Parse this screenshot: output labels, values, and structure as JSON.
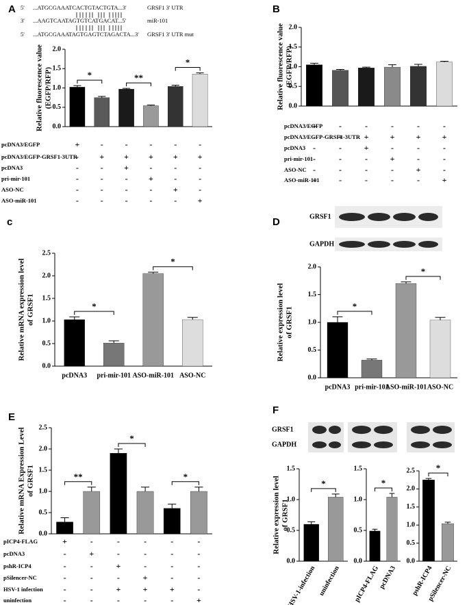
{
  "chart_data": [
    {
      "type": "bar",
      "panel": "A",
      "sequences": [
        [
          "5'",
          "...ATGCGAAATCACTGTACTGTA...3'",
          "GRSF1 3' UTR"
        ],
        [
          "3'",
          "...AAGTCAATAGTGTCATGACAT...5'",
          "miR-101"
        ],
        [
          "5'",
          "...ATGCGAAATAGTGAGTCTAGACTA...3'",
          "GRSF1 3' UTR mut"
        ]
      ],
      "ylabel": [
        "Relative fluorescence value",
        "(EGFP/RFP)"
      ],
      "ylim": [
        0,
        2
      ],
      "yticks": [
        {
          "value": 0,
          "label": "0.0"
        },
        0.5,
        {
          "value": 1,
          "label": "1.0"
        },
        1.5,
        {
          "value": 2,
          "label": "2.0"
        }
      ],
      "values": [
        1.02,
        0.75,
        0.97,
        0.54,
        1.04,
        1.36
      ],
      "errors": [
        0.04,
        0.03,
        0.02,
        0.02,
        0.03,
        0.03
      ],
      "colors": [
        "#000000",
        "#5a5a5a",
        "#1a1a1a",
        "#9a9a9a",
        "#333333",
        "#dcdcdc"
      ],
      "significance": [
        "*",
        "**",
        "*"
      ],
      "conditions": [
        {
          "label": "pcDNA3/EGFP",
          "marks": [
            "+",
            "-",
            "-",
            "-",
            "-",
            "-"
          ]
        },
        {
          "label": "pcDNA3/EGFP-GRSF1-3UTR",
          "marks": [
            "-",
            "+",
            "+",
            "+",
            "+",
            "+"
          ]
        },
        {
          "label": "pcDNA3",
          "marks": [
            "-",
            "-",
            "+",
            "-",
            "-",
            "-"
          ]
        },
        {
          "label": "pri-mir-101",
          "marks": [
            "-",
            "-",
            "-",
            "+",
            "-",
            "-"
          ]
        },
        {
          "label": "ASO-NC",
          "marks": [
            "-",
            "-",
            "-",
            "-",
            "+",
            "-"
          ]
        },
        {
          "label": "ASO-miR-101",
          "marks": [
            "-",
            "-",
            "-",
            "-",
            "-",
            "+"
          ]
        }
      ]
    },
    {
      "type": "bar",
      "panel": "B",
      "ylabel": [
        "Relative fluorescence value",
        "(EGFP/RFP)"
      ],
      "ylim": [
        0,
        2
      ],
      "yticks": [
        {
          "value": 0,
          "label": "0.0"
        },
        0.5,
        {
          "value": 1,
          "label": "1.0"
        },
        1.5,
        {
          "value": 2,
          "label": "2.0"
        }
      ],
      "values": [
        1.05,
        0.91,
        0.97,
        0.99,
        1.01,
        1.12
      ],
      "errors": [
        0.04,
        0.02,
        0.02,
        0.06,
        0.05,
        0.02
      ],
      "colors": [
        "#000000",
        "#555555",
        "#1a1a1a",
        "#8a8a8a",
        "#333333",
        "#dcdcdc"
      ],
      "conditions": [
        {
          "label": "pcDNA3/EGFP",
          "marks": [
            "+",
            "-",
            "-",
            "-",
            "-",
            "-"
          ]
        },
        {
          "label": "pcDNA3/EGFP-GRSF1-3UTR",
          "marks": [
            "-",
            "+",
            "+",
            "+",
            "+",
            "+"
          ]
        },
        {
          "label": "pcDNA3",
          "marks": [
            "-",
            "-",
            "+",
            "-",
            "-",
            "-"
          ]
        },
        {
          "label": "pri-mir-101",
          "marks": [
            "-",
            "-",
            "-",
            "+",
            "-",
            "-"
          ]
        },
        {
          "label": "ASO-NC",
          "marks": [
            "-",
            "-",
            "-",
            "-",
            "+",
            "-"
          ]
        },
        {
          "label": "ASO-miR-101",
          "marks": [
            "-",
            "-",
            "-",
            "-",
            "-",
            "+"
          ]
        }
      ]
    },
    {
      "type": "bar",
      "panel": "c",
      "ylabel": [
        "Relative mRNA expression level",
        "of GRSF1"
      ],
      "ylim": [
        0,
        2.5
      ],
      "yticks": [
        {
          "value": 0,
          "label": "0.0"
        },
        0.5,
        {
          "value": 1,
          "label": "1.0"
        },
        1.5,
        {
          "value": 2,
          "label": "2.0"
        },
        2.5
      ],
      "categories": [
        "pcDNA3",
        "pri-mir-101",
        "ASO-miR-101",
        "ASO-NC"
      ],
      "values": [
        1.03,
        0.51,
        2.05,
        1.03
      ],
      "errors": [
        0.06,
        0.05,
        0.03,
        0.05
      ],
      "colors": [
        "#000000",
        "#777777",
        "#999999",
        "#dddddd"
      ],
      "significance": [
        "*",
        "*"
      ]
    },
    {
      "type": "bar",
      "panel": "D",
      "blot": [
        "GRSF1",
        "GAPDH"
      ],
      "ylabel": [
        "Relative expression level",
        "of GRSF1"
      ],
      "ylim": [
        0,
        2
      ],
      "yticks": [
        {
          "value": 0,
          "label": "0.0"
        },
        0.5,
        {
          "value": 1,
          "label": "1.0"
        },
        1.5,
        {
          "value": 2,
          "label": "2.0"
        }
      ],
      "categories": [
        "pcDNA3",
        "pri-mir-101",
        "ASO-miR-101",
        "ASO-NC"
      ],
      "values": [
        1.0,
        0.32,
        1.7,
        1.04
      ],
      "errors": [
        0.1,
        0.02,
        0.03,
        0.05
      ],
      "colors": [
        "#000000",
        "#777777",
        "#999999",
        "#dddddd"
      ],
      "significance": [
        "*",
        "*"
      ]
    },
    {
      "type": "bar",
      "panel": "E",
      "ylabel": [
        "Relative  mRNA Expression Level",
        "of GRSF1"
      ],
      "ylim": [
        0,
        2.5
      ],
      "yticks": [
        {
          "value": 0,
          "label": "0.0"
        },
        0.5,
        {
          "value": 1,
          "label": "1.0"
        },
        1.5,
        {
          "value": 2,
          "label": "2.0"
        },
        2.5
      ],
      "values": [
        0.28,
        1.0,
        1.9,
        1.0,
        0.6,
        1.0
      ],
      "errors": [
        0.1,
        0.1,
        0.1,
        0.1,
        0.1,
        0.1
      ],
      "colors": [
        "#000000",
        "#999999",
        "#000000",
        "#999999",
        "#000000",
        "#999999"
      ],
      "significance": [
        "**",
        "*",
        "*"
      ],
      "conditions": [
        {
          "label": "pICP4-FLAG",
          "marks": [
            "+",
            "-",
            "-",
            "-",
            "-",
            "-"
          ]
        },
        {
          "label": "pcDNA3",
          "marks": [
            "-",
            "+",
            "-",
            "-",
            "-",
            "-"
          ]
        },
        {
          "label": "pshR-ICP4",
          "marks": [
            "-",
            "-",
            "+",
            "-",
            "-",
            "-"
          ]
        },
        {
          "label": "pSilencer-NC",
          "marks": [
            "-",
            "-",
            "-",
            "+",
            "-",
            "-"
          ]
        },
        {
          "label": "HSV-1 infection",
          "marks": [
            "-",
            "-",
            "+",
            "+",
            "+",
            "-"
          ]
        },
        {
          "label": "uninfection",
          "marks": [
            "-",
            "-",
            "-",
            "-",
            "-",
            "+"
          ]
        }
      ]
    },
    {
      "type": "bar",
      "panel": "F",
      "blot": [
        "GRSF1",
        "GAPDH"
      ],
      "ylabel": [
        "Relative expression level",
        "of GRSF1"
      ],
      "ylim": [
        0,
        1.5
      ],
      "yticks": [
        {
          "value": 0,
          "label": "0.0"
        },
        0.5,
        {
          "value": 1,
          "label": "1.0"
        },
        1.5
      ],
      "categories": [
        "HSV-1-infection",
        "uninfection"
      ],
      "values": [
        0.6,
        1.04
      ],
      "errors": [
        0.04,
        0.05
      ],
      "colors": [
        "#000000",
        "#999999"
      ],
      "significance": [
        "*"
      ]
    },
    {
      "type": "bar",
      "ylim": [
        0,
        1.5
      ],
      "yticks": [
        {
          "value": 0,
          "label": "0.0"
        },
        0.5,
        {
          "value": 1,
          "label": "1.0"
        },
        1.5
      ],
      "categories": [
        "pICP4-FLAG",
        "pcDNA3"
      ],
      "values": [
        0.49,
        1.04
      ],
      "errors": [
        0.03,
        0.06
      ],
      "colors": [
        "#000000",
        "#999999"
      ],
      "significance": [
        "*"
      ]
    },
    {
      "type": "bar",
      "ylim": [
        0,
        2.5
      ],
      "yticks": [
        {
          "value": 0,
          "label": "0.0"
        },
        0.5,
        {
          "value": 1,
          "label": "1.0"
        },
        1.5,
        {
          "value": 2,
          "label": "2.0"
        },
        2.5
      ],
      "categories": [
        "pshR-ICP4",
        "pSilencer-NC"
      ],
      "values": [
        2.25,
        1.04
      ],
      "errors": [
        0.04,
        0.04
      ],
      "colors": [
        "#000000",
        "#999999"
      ],
      "significance": [
        "*"
      ]
    }
  ]
}
